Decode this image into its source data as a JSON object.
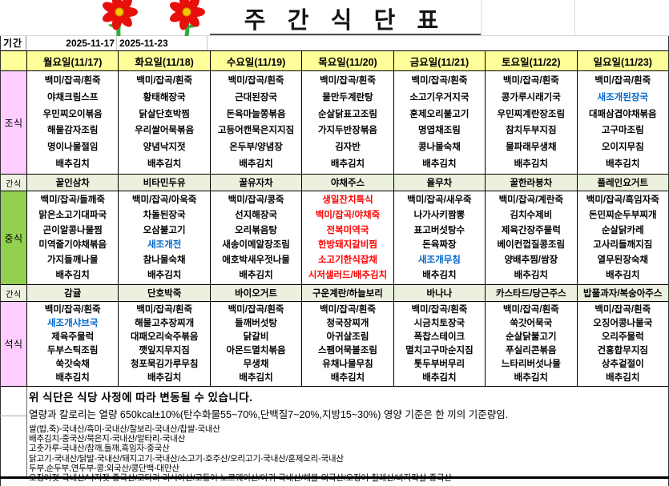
{
  "title": "주 간 식 단 표",
  "period": {
    "label": "기간",
    "start": "2025-11-17",
    "end": "2025-11-23"
  },
  "days": [
    "월요일(11/17)",
    "화요일(11/18)",
    "수요일(11/19)",
    "목요일(11/20)",
    "금요일(11/21)",
    "토요일(11/22)",
    "일요일(11/23)"
  ],
  "colors": {
    "header_bg": "#FFFF99",
    "breakfast_label_bg": "#FFCCFF",
    "lunch_label_bg": "#92D050",
    "dinner_label_bg": "#FFCCFF",
    "snack_bg": "#EBF1DE",
    "special_blue": "#0066CC",
    "special_red": "#FF0000"
  },
  "rows": [
    {
      "key": "breakfast",
      "label": "조식",
      "kind": "meal",
      "label_bg": "#FFCCFF",
      "cells": [
        [
          "백미/잡곡/흰죽",
          "야채크림스프",
          "우민찌오이볶음",
          "해물감자조림",
          "명이나물절임",
          "배추김치"
        ],
        [
          "백미/잡곡/흰죽",
          "황태해장국",
          "닭살단호박찜",
          "우리쌀어묵볶음",
          "양념낙지젓",
          "배추김치"
        ],
        [
          "백미/잡곡/흰죽",
          "근대된장국",
          "돈육마늘쫑볶음",
          "고등어캔묵은지지짐",
          "온두부/양념장",
          "배추김치"
        ],
        [
          "백미/잡곡/흰죽",
          "물만두계란탕",
          "순살닭표고조림",
          "가지두반장볶음",
          "김자반",
          "배추김치"
        ],
        [
          "백미/잡곡/흰죽",
          "소고기우거지국",
          "훈제오리불고기",
          "명엽채조림",
          "콩나물숙채",
          "배추김치"
        ],
        [
          "백미/잡곡/흰죽",
          "콩가루시래기국",
          "우민찌계란장조림",
          "참치두부지짐",
          "물파래무생채",
          "배추김치"
        ],
        [
          "백미/잡곡/흰죽",
          {
            "t": "새조개된장국",
            "c": "blue"
          },
          "대패삼겹야채볶음",
          "고구마조림",
          "오이지무침",
          "배추김치"
        ]
      ]
    },
    {
      "key": "snack1",
      "label": "간식",
      "kind": "snack",
      "cells": [
        "꿀인삼차",
        "비타민두유",
        "꿀유자차",
        "야채주스",
        "율무차",
        "꿀한라봉차",
        "플레인요거트"
      ]
    },
    {
      "key": "lunch",
      "label": "중식",
      "kind": "meal",
      "label_bg": "#92D050",
      "cells": [
        [
          "백미/잡곡/들깨죽",
          "맑은소고기대파국",
          "곤이알콩나물찜",
          "미역줄기야채볶음",
          "가지들깨나물",
          "배추김치"
        ],
        [
          "백미/잡곡/아욱죽",
          "차돌된장국",
          "오삼불고기",
          {
            "t": "새조개전",
            "c": "blue"
          },
          "참나물숙채",
          "배추김치"
        ],
        [
          "백미/잡곡/콩죽",
          "선지해장국",
          "오리볶음탕",
          "새송이메알장조림",
          "애호박새우젓나물",
          "배추김치"
        ],
        [
          {
            "t": "생일잔치특식",
            "c": "red"
          },
          {
            "t": "백미/잡곡/야채죽",
            "c": "red"
          },
          {
            "t": "전복미역국",
            "c": "red"
          },
          {
            "t": "한방돼지갈비찜",
            "c": "red"
          },
          {
            "t": "소고기한식잡채",
            "c": "red"
          },
          {
            "t": "시저샐러드/배추김치",
            "c": "red"
          }
        ],
        [
          "백미/잡곡/새우죽",
          "나가사키짬뽕",
          "표고버섯탕수",
          "돈육짜장",
          {
            "t": "새조개무침",
            "c": "blue"
          },
          "배추김치"
        ],
        [
          "백미/잡곡/계란죽",
          "김치수제비",
          "제육간장주물럭",
          "베이컨껍질콩조림",
          "양배추찜/쌈장",
          "배추김치"
        ],
        [
          "백미/잡곡/흑임자죽",
          "돈민찌순두부찌개",
          "순살닭카레",
          "고사리들깨지짐",
          "열무된장숙채",
          "배추김치"
        ]
      ]
    },
    {
      "key": "snack2",
      "label": "간식",
      "kind": "snack",
      "cells": [
        "감귤",
        "단호박죽",
        "바이오거트",
        "구운계란/하늘보리",
        "바나나",
        "카스타드/당근주스",
        "밥풀과자/복숭아주스"
      ]
    },
    {
      "key": "dinner",
      "label": "석식",
      "kind": "meal",
      "label_bg": "#FFCCFF",
      "cells": [
        [
          "백미/잡곡/흰죽",
          {
            "t": "새조개샤브국",
            "c": "blue"
          },
          "제육주물럭",
          "두부스틱조림",
          "쑥갓숙채",
          "배추김치"
        ],
        [
          "백미/잡곡/흰죽",
          "해물고추장찌개",
          "대패오리숙주볶음",
          "깻잎지무지짐",
          "청포묵김가루무침",
          "배추김치"
        ],
        [
          "백미/잡곡/흰죽",
          "들깨버섯탕",
          "닭갈비",
          "아몬드멸치볶음",
          "무생채",
          "배추김치"
        ],
        [
          "백미/잡곡/흰죽",
          "청국장찌개",
          "아귀살조림",
          "스팸어묵볼조림",
          "유채나물무침",
          "배추김치"
        ],
        [
          "백미/잡곡/흰죽",
          "시금치토장국",
          "폭찹스테이크",
          "멸치고구마순지짐",
          "톳두부버무리",
          "배추김치"
        ],
        [
          "백미/잡곡/흰죽",
          "쑥갓어묵국",
          "순살닭불고기",
          "푸실리콘볶음",
          "느타리버섯나물",
          "배추김치"
        ],
        [
          "백미/잡곡/흰죽",
          "오징어콩나물국",
          "오리주물럭",
          "건홍합무지짐",
          "상추겉절이",
          "배추김치"
        ]
      ]
    }
  ],
  "notes": {
    "line1": "위 식단은 식당 사정에 따라 변동될 수 있습니다.",
    "line2": "열량과 칼로리는 열량 650kcal±10%(탄수화물55~70%,단백질7~20%,지방15~30%) 영양 기준은 한 끼의 기준량임."
  },
  "origins": [
    "쌀(밥,죽)-국내산/흑미-국내산/찰보리-국내산/찹쌀-국내산",
    "배추김치-중국산/묵은지-국내산/알타리-국내산",
    "고춧가루-국내산/참깨,들깨,흑임자-중국산",
    "닭고기-국내산/닭발-국내산/돼지고기-국내산/소고기-호주산/오리고기-국내산/훈제오리-국내산",
    "두부,순두부,연두부-콩:외국산/콩단백-대만산",
    "오징어젓-국내산/낙지젓-중국산/코다리-러시아산/고등어-노르웨이산/아귀-국내산/해물-외국산/오징어-칠레산/바지락살-중국산"
  ]
}
